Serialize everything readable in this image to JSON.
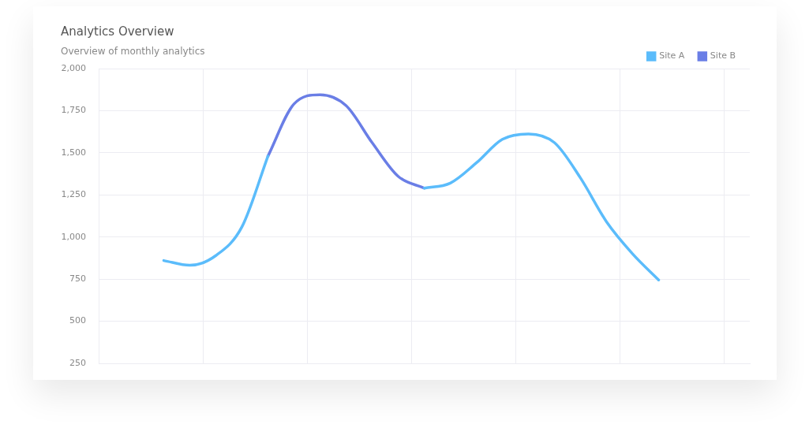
{
  "chart_data": {
    "type": "line",
    "title": "Analytics Overview",
    "subtitle": "Overview of monthly analytics",
    "categories": [
      null,
      null,
      null,
      null,
      null,
      null,
      null,
      null,
      null,
      null,
      null,
      null,
      null,
      null,
      null,
      null,
      null,
      null,
      null,
      null,
      null,
      null,
      null,
      null,
      null
    ],
    "series": [
      {
        "name": "Site A",
        "color": "#5bbcfb",
        "values": [
          null,
          null,
          860,
          832,
          890,
          1060,
          1480,
          null,
          null,
          null,
          null,
          null,
          1290,
          1320,
          1440,
          1580,
          1612,
          1560,
          1350,
          1090,
          900,
          745,
          null,
          null,
          null
        ]
      },
      {
        "name": "Site B",
        "color": "#6a7ee6",
        "values": [
          null,
          null,
          null,
          null,
          null,
          null,
          1480,
          1790,
          1845,
          1780,
          1560,
          1360,
          1290,
          null,
          null,
          null,
          null,
          null,
          null,
          null,
          null,
          null,
          null,
          null,
          null
        ]
      }
    ],
    "ylim": [
      250,
      2000
    ],
    "yticks": [
      {
        "value": 250,
        "label": "250"
      },
      {
        "value": 500,
        "label": "500"
      },
      {
        "value": 750,
        "label": "750"
      },
      {
        "value": 1000,
        "label": "1,000"
      },
      {
        "value": 1250,
        "label": "1,250"
      },
      {
        "value": 1500,
        "label": "1,500"
      },
      {
        "value": 1750,
        "label": "1,750"
      },
      {
        "value": 2000,
        "label": "2,000"
      }
    ],
    "tick_labels": "y",
    "grid": true,
    "legend": "top right",
    "marker": "none",
    "line_style": "solid"
  }
}
